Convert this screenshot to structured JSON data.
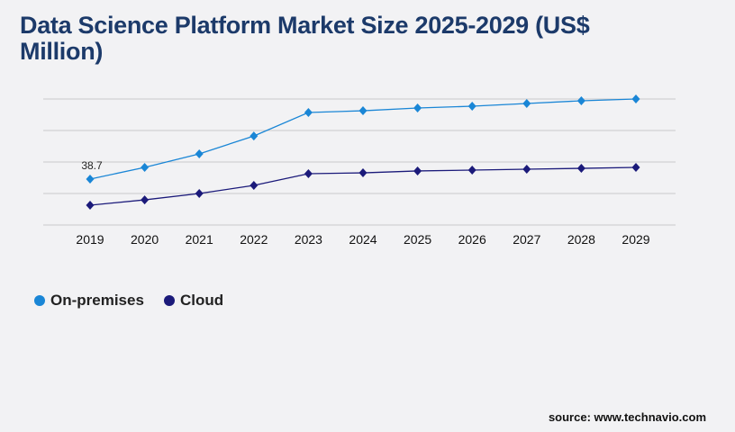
{
  "title": "Data Science Platform Market Size 2025-2029 (US$ Million)",
  "source": "source: www.technavio.com",
  "chart_data": {
    "type": "line",
    "title": "Data Science Platform Market Size 2025-2029 (US$ Million)",
    "categories": [
      "2019",
      "2020",
      "2021",
      "2022",
      "2023",
      "2024",
      "2025",
      "2026",
      "2027",
      "2028",
      "2029"
    ],
    "series": [
      {
        "name": "On-premises",
        "color": "#1a86d6",
        "values": [
          38.7,
          48.6,
          60.0,
          75.1,
          94.9,
          96.4,
          98.7,
          100.2,
          102.5,
          104.8,
          106.3
        ],
        "data_labels": {
          "0": "38.7"
        }
      },
      {
        "name": "Cloud",
        "color": "#1b1a7a",
        "values": [
          16.7,
          21.2,
          26.6,
          33.4,
          43.3,
          44.0,
          45.6,
          46.3,
          47.1,
          47.8,
          48.6
        ]
      }
    ],
    "ylim": [
      0,
      106.3
    ],
    "grid": true,
    "legend": "bottom-left",
    "xlabel": "",
    "ylabel": ""
  }
}
